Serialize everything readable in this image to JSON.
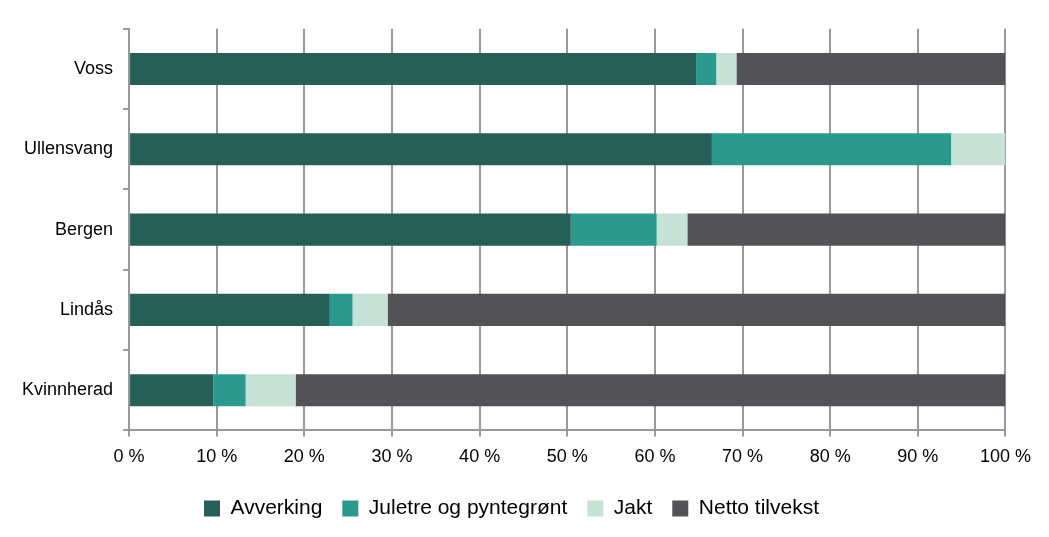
{
  "chart_data": {
    "type": "bar",
    "orientation": "horizontal",
    "stacked": true,
    "categories": [
      "Voss",
      "Ullensvang",
      "Bergen",
      "Lindås",
      "Kvinnherad"
    ],
    "series": [
      {
        "name": "Avverking",
        "color": "#265e58",
        "values": [
          64.7,
          66.5,
          50.4,
          22.9,
          9.6
        ]
      },
      {
        "name": "Juletre og pyntegrønt",
        "color": "#2a9a8f",
        "values": [
          2.3,
          27.3,
          9.8,
          2.6,
          3.7
        ]
      },
      {
        "name": "Jakt",
        "color": "#c6e2d7",
        "values": [
          2.3,
          6.2,
          3.5,
          4.0,
          5.7
        ]
      },
      {
        "name": "Netto tilvekst",
        "color": "#525257",
        "values": [
          30.7,
          0,
          36.3,
          70.5,
          81.0
        ]
      }
    ],
    "xlim": [
      0,
      100
    ],
    "xticks": [
      {
        "value": 0,
        "label": "0 %"
      },
      {
        "value": 10,
        "label": "10 %"
      },
      {
        "value": 20,
        "label": "20 %"
      },
      {
        "value": 30,
        "label": "30 %"
      },
      {
        "value": 40,
        "label": "40 %"
      },
      {
        "value": 50,
        "label": "50 %"
      },
      {
        "value": 60,
        "label": "60 %"
      },
      {
        "value": 70,
        "label": "70 %"
      },
      {
        "value": 80,
        "label": "80 %"
      },
      {
        "value": 90,
        "label": "90 %"
      },
      {
        "value": 100,
        "label": "100 %"
      }
    ],
    "grid": "x",
    "legend": "bottom"
  }
}
